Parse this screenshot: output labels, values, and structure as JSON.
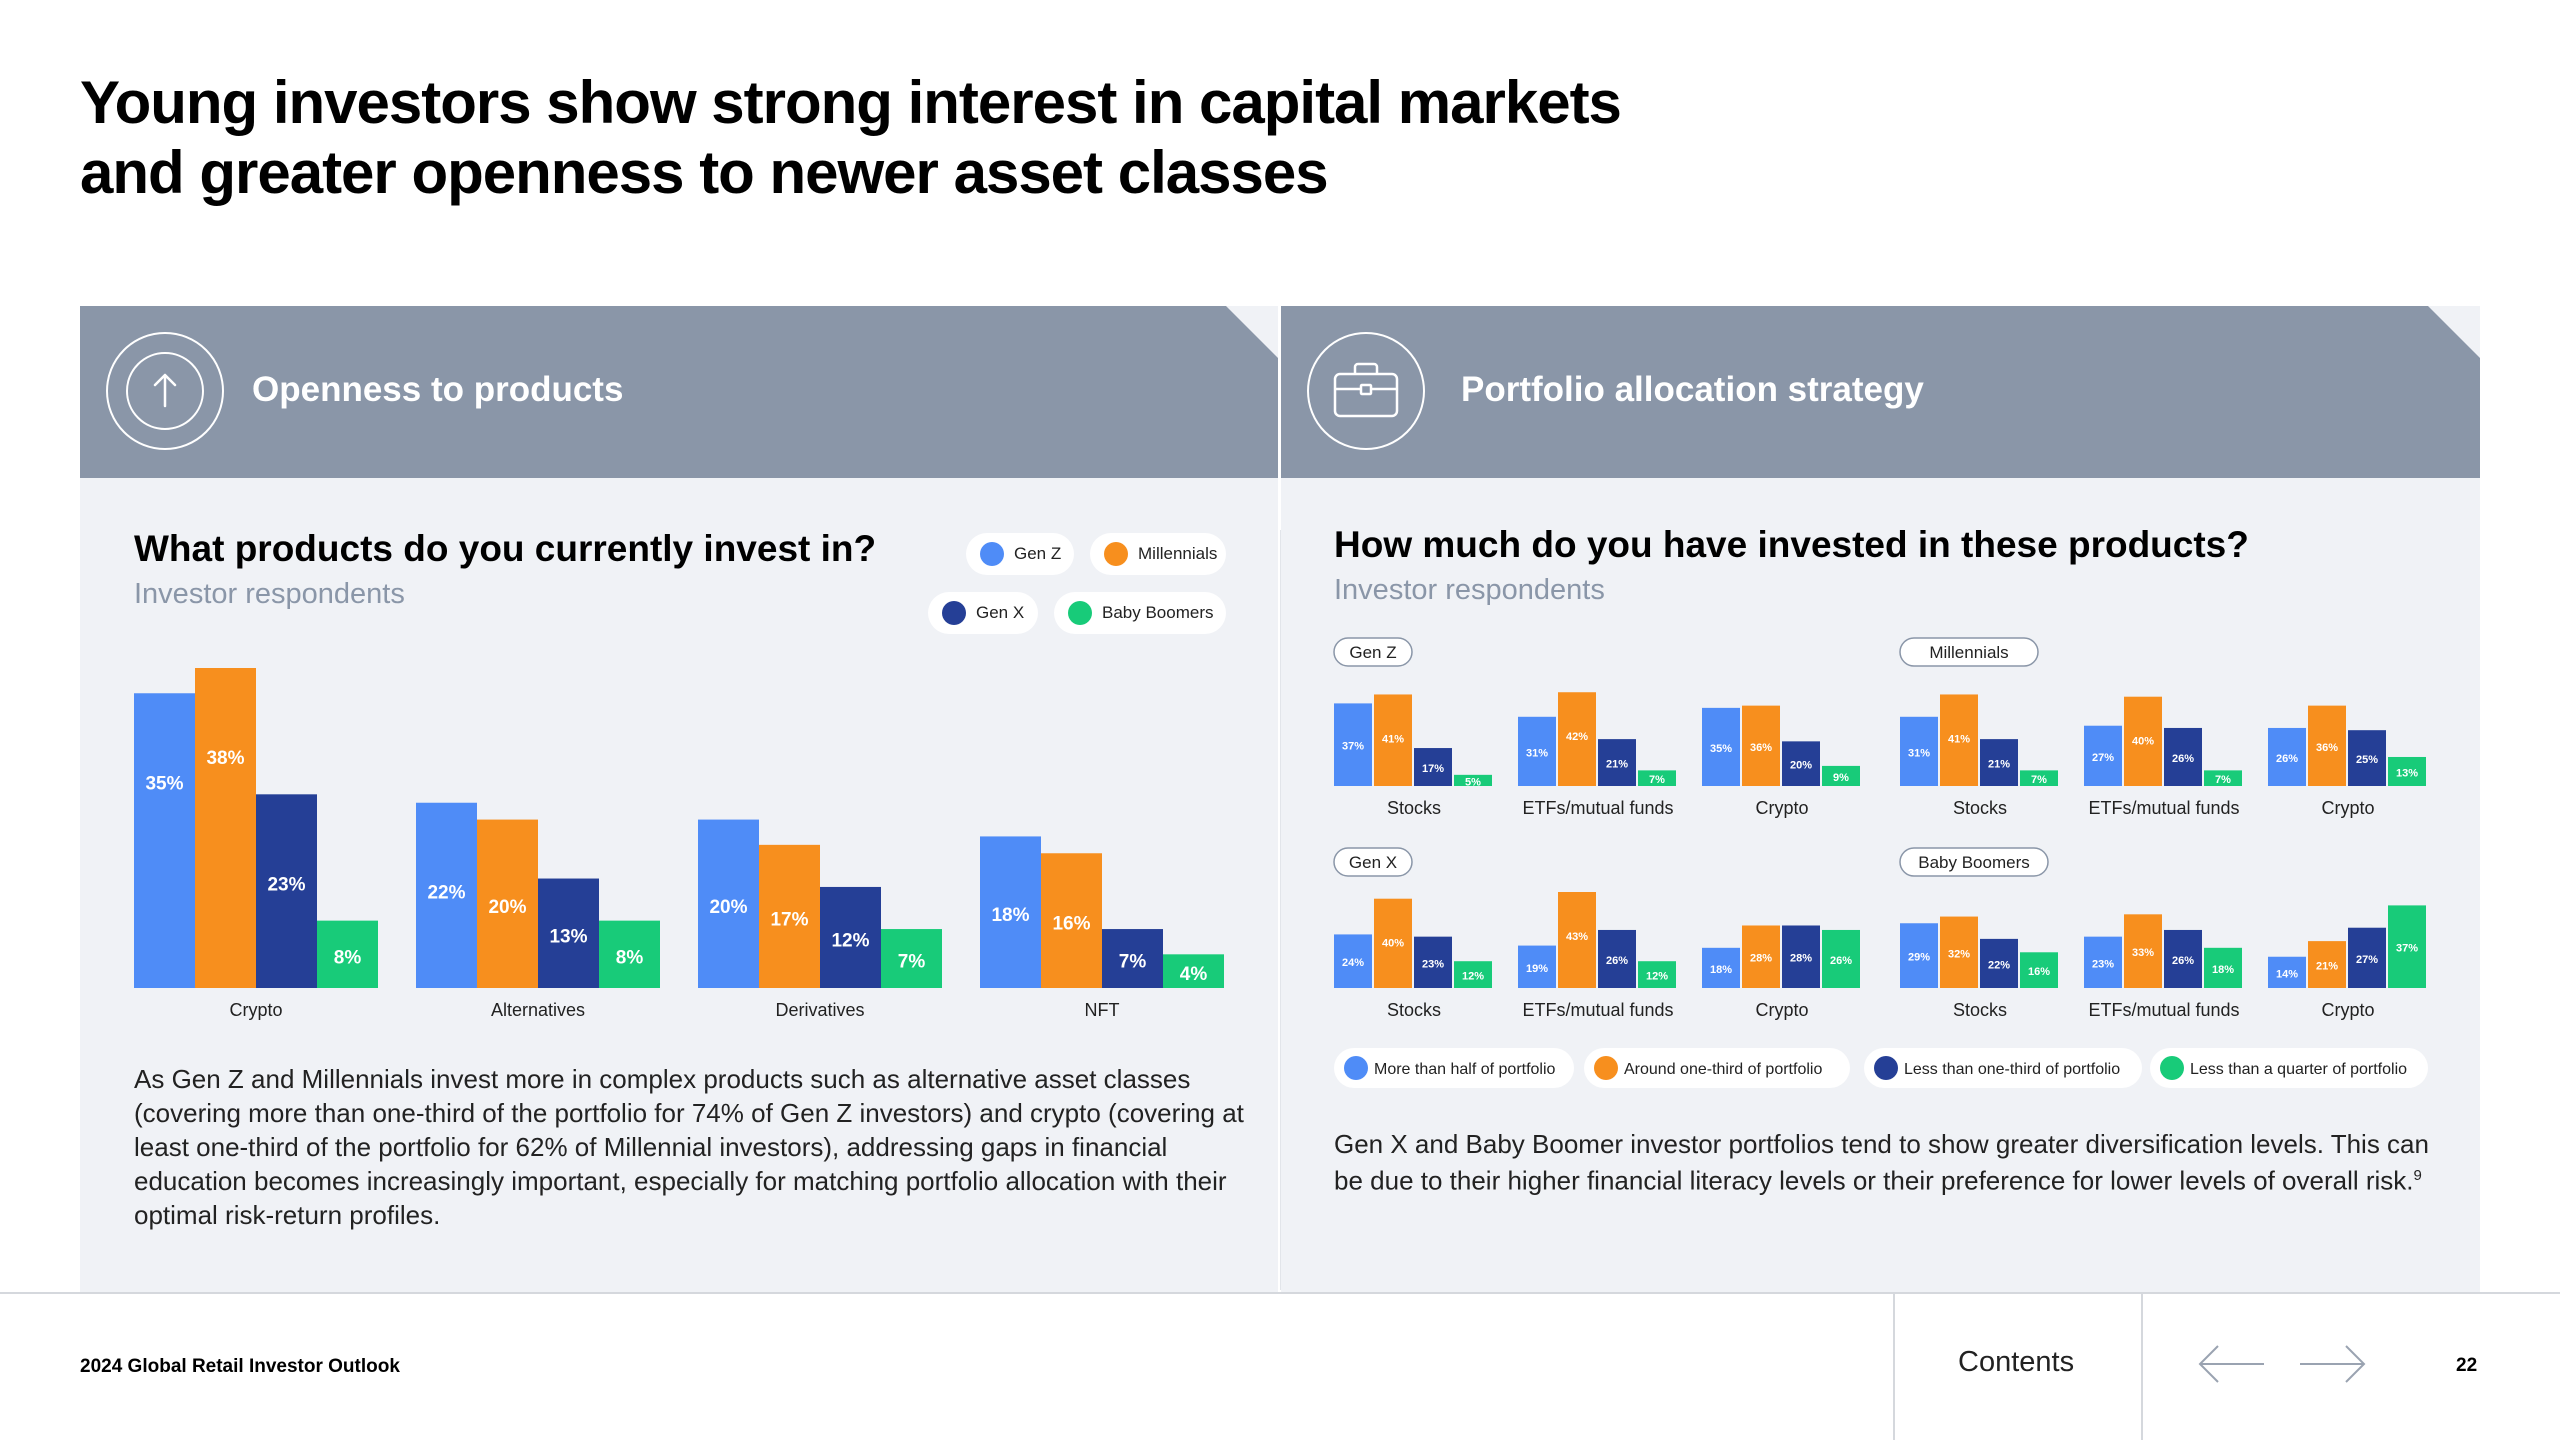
{
  "page": {
    "title_lines": [
      "Young investors show strong interest in capital markets",
      "and greater openness to newer asset classes"
    ],
    "report_name": "2024 Global Retail Investor Outlook",
    "contents_label": "Contents",
    "page_number": "22"
  },
  "left_panel": {
    "header": "Openness to products",
    "icon": "arrow-up-circle-icon",
    "question": "What products do you currently invest in?",
    "subtitle": "Investor respondents",
    "legend": [
      {
        "name": "Gen Z",
        "color": "#4f8cf7"
      },
      {
        "name": "Millennials",
        "color": "#f78f1e"
      },
      {
        "name": "Gen X",
        "color": "#253f96"
      },
      {
        "name": "Baby Boomers",
        "color": "#18cb79"
      }
    ],
    "body": "As Gen Z and Millennials invest more in complex products such as alternative asset classes (covering more than one-third of the portfolio for 74% of Gen Z investors) and crypto (covering at least one-third of the portfolio for 62% of Millennial investors), addressing gaps in financial education becomes increasingly important, especially for matching portfolio allocation with their optimal risk-return profiles."
  },
  "right_panel": {
    "header": "Portfolio allocation strategy",
    "icon": "briefcase-icon",
    "question": "How much do you have invested in these products?",
    "subtitle": "Investor respondents",
    "legend": [
      {
        "name": "More than half of portfolio",
        "color": "#4f8cf7"
      },
      {
        "name": "Around one-third of portfolio",
        "color": "#f78f1e"
      },
      {
        "name": "Less than one-third of portfolio",
        "color": "#253f96"
      },
      {
        "name": "Less than a quarter of portfolio",
        "color": "#18cb79"
      }
    ],
    "body": "Gen X and Baby Boomer investor portfolios tend to show greater diversification levels. This can be due to their higher financial literacy levels or their preference for lower levels of overall risk.",
    "footnote_mark": "9"
  },
  "chart_data": [
    {
      "type": "bar",
      "title": "What products do you currently invest in?",
      "subtitle": "Investor respondents",
      "categories": [
        "Crypto",
        "Alternatives",
        "Derivatives",
        "NFT"
      ],
      "series": [
        {
          "name": "Gen Z",
          "values": [
            35,
            22,
            20,
            18
          ]
        },
        {
          "name": "Millennials",
          "values": [
            38,
            20,
            17,
            16
          ]
        },
        {
          "name": "Gen X",
          "values": [
            23,
            13,
            12,
            7
          ]
        },
        {
          "name": "Baby Boomers",
          "values": [
            8,
            8,
            7,
            4
          ]
        }
      ],
      "unit": "%"
    },
    {
      "type": "bar",
      "title": "How much do you have invested in these products?",
      "subtitle": "Investor respondents",
      "categories": [
        "Stocks",
        "ETFs/mutual funds",
        "Crypto"
      ],
      "series_names": [
        "More than half of portfolio",
        "Around one-third of portfolio",
        "Less than one-third of portfolio",
        "Less than a quarter of portfolio"
      ],
      "unit": "%",
      "panels": [
        {
          "name": "Gen Z",
          "values": [
            [
              37,
              41,
              17,
              5
            ],
            [
              31,
              42,
              21,
              7
            ],
            [
              35,
              36,
              20,
              9
            ]
          ]
        },
        {
          "name": "Millennials",
          "values": [
            [
              31,
              41,
              21,
              7
            ],
            [
              27,
              40,
              26,
              7
            ],
            [
              26,
              36,
              25,
              13
            ]
          ]
        },
        {
          "name": "Gen X",
          "values": [
            [
              24,
              40,
              23,
              12
            ],
            [
              19,
              43,
              26,
              12
            ],
            [
              18,
              28,
              28,
              26
            ]
          ]
        },
        {
          "name": "Baby Boomers",
          "values": [
            [
              29,
              32,
              22,
              16
            ],
            [
              23,
              33,
              26,
              18
            ],
            [
              14,
              21,
              27,
              37
            ]
          ]
        }
      ]
    }
  ]
}
